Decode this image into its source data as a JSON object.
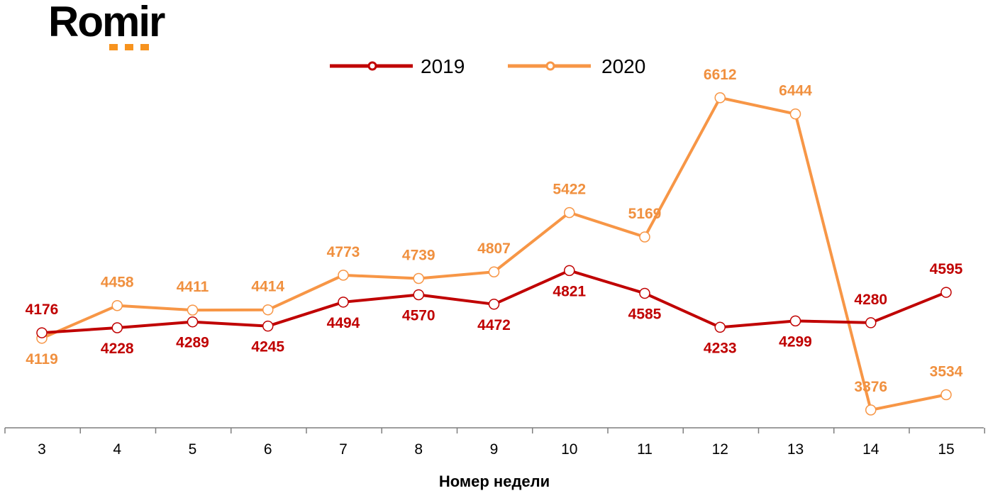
{
  "logo": {
    "text": "Romir",
    "dot_color": "#F7931E"
  },
  "chart_data": {
    "type": "line",
    "title": "",
    "xlabel": "Номер недели",
    "ylabel": "",
    "categories": [
      "3",
      "4",
      "5",
      "6",
      "7",
      "8",
      "9",
      "10",
      "11",
      "12",
      "13",
      "14",
      "15"
    ],
    "ylim": [
      2700,
      7300
    ],
    "grid": false,
    "legend_position": "top-center",
    "series": [
      {
        "name": "2019",
        "color": "#C00000",
        "values": [
          4176,
          4228,
          4289,
          4245,
          4494,
          4570,
          4472,
          4821,
          4585,
          4233,
          4299,
          4280,
          4595
        ]
      },
      {
        "name": "2020",
        "color": "#F79646",
        "values": [
          4119,
          4458,
          4411,
          4414,
          4773,
          4739,
          4807,
          5422,
          5169,
          6612,
          6444,
          3376,
          3534
        ]
      }
    ]
  }
}
